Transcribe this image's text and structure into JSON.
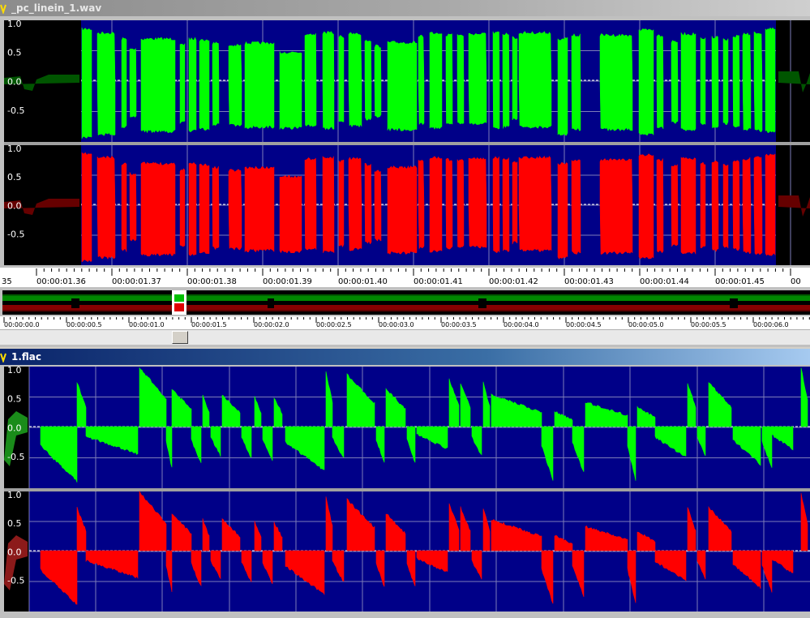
{
  "windows": [
    {
      "title": "_pc_linein_1.wav",
      "colors": {
        "selection_bg": "#000088",
        "outside_bg": "#000000",
        "left": "#00ff00",
        "right": "#ff0000",
        "left_dim": "#005500",
        "right_dim": "#660000"
      },
      "y_labels": [
        "1.0",
        "0.5",
        "0.0",
        "-0.5"
      ],
      "time_ruler": {
        "partial_left": "35",
        "ticks": [
          "00:00:01.36",
          "00:00:01.37",
          "00:00:01.38",
          "00:00:01.39",
          "00:00:01.40",
          "00:00:01.41",
          "00:00:01.42",
          "00:00:01.43",
          "00:00:01.44",
          "00:00:01.45",
          "00"
        ]
      },
      "overview_ruler": {
        "ticks": [
          "00:00:00.0",
          "00:00:00.5",
          "00:00:01.0",
          "00:00:01.5",
          "00:00:02.0",
          "00:00:02.5",
          "00:00:03.0",
          "00:00:03.5",
          "00:00:04.0",
          "00:00:04.5",
          "00:00:05.0",
          "00:00:05.5",
          "00:00:06.0"
        ]
      },
      "scrollbar_position": 0.22
    },
    {
      "title": "1.flac",
      "colors": {
        "selection_bg": "#000088",
        "outside_bg": "#000000",
        "left": "#00ff00",
        "right": "#ff0000"
      },
      "y_labels": [
        "1.0",
        "0.5",
        "0.0",
        "-0.5"
      ]
    }
  ]
}
